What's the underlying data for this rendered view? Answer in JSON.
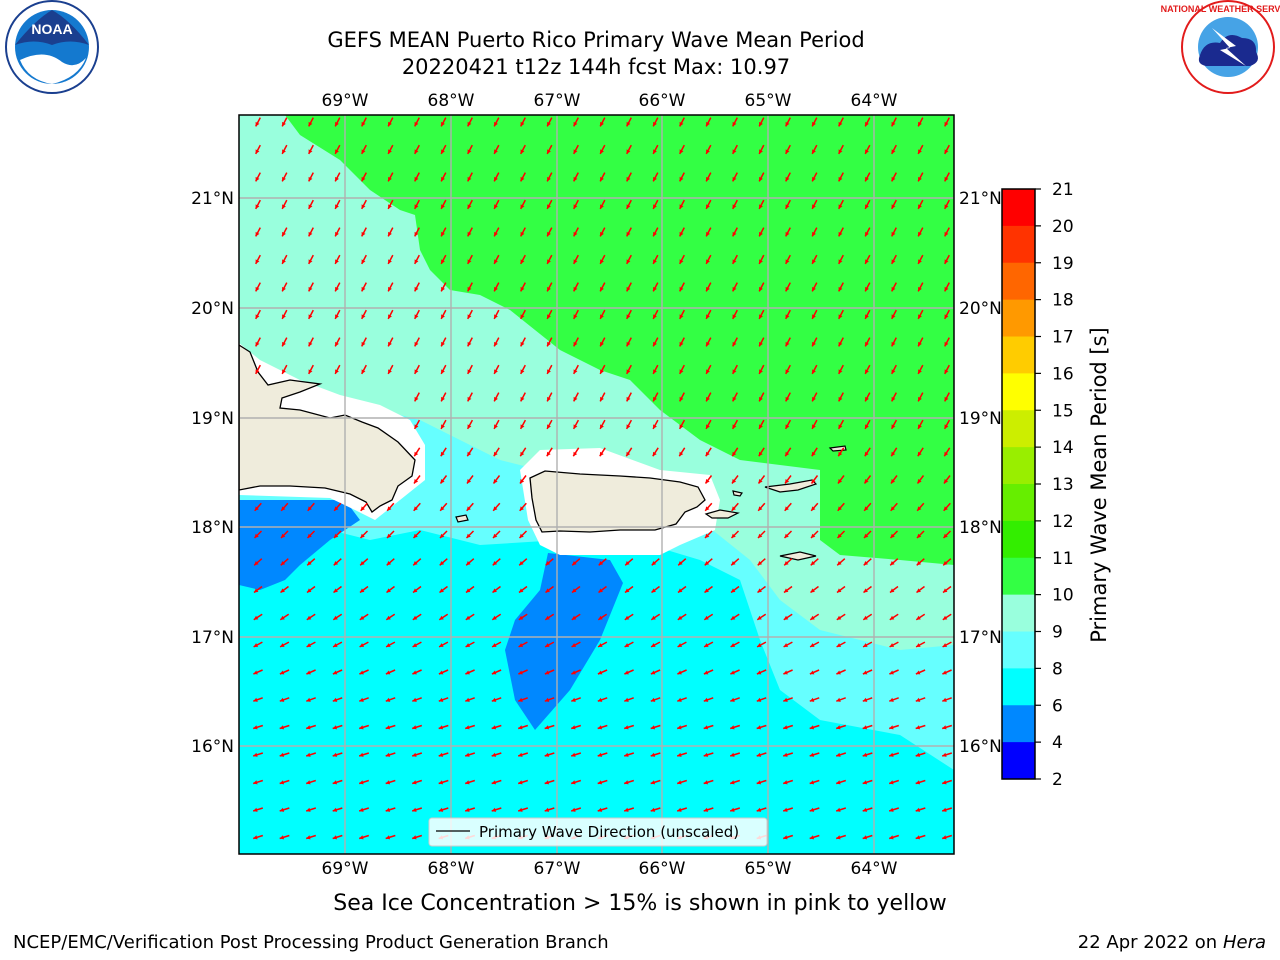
{
  "title": {
    "line1": "GEFS MEAN Puerto Rico Primary Wave Mean Period",
    "line2": "20220421 t12z 144h fcst   Max: 10.97"
  },
  "logos": {
    "left": {
      "icon": "noaa-logo",
      "text": "NOAA"
    },
    "right": {
      "icon": "nws-logo",
      "text": "NATIONAL WEATHER SERVICE"
    }
  },
  "map": {
    "lon_labels": [
      "69°W",
      "68°W",
      "67°W",
      "66°W",
      "65°W",
      "64°W"
    ],
    "lat_labels": [
      "21°N",
      "20°N",
      "19°N",
      "18°N",
      "17°N",
      "16°N"
    ],
    "legend_label": "Primary Wave Direction (unscaled)",
    "arrow_color": "#ff0000",
    "land_color": "#efecdc"
  },
  "colorbar": {
    "label": "Primary Wave Mean Period [s]",
    "ticks": [
      "21",
      "20",
      "19",
      "18",
      "17",
      "16",
      "15",
      "14",
      "13",
      "12",
      "11",
      "10",
      "9",
      "8",
      "6",
      "4",
      "2"
    ],
    "colors": [
      "#ff0000",
      "#ff3300",
      "#ff6600",
      "#ff9900",
      "#ffcc00",
      "#ffff00",
      "#ccee00",
      "#99ee00",
      "#66ee00",
      "#33ee00",
      "#33ff44",
      "#99ffdd",
      "#66ffff",
      "#00ffff",
      "#0088ff",
      "#0000ff"
    ]
  },
  "footer": {
    "sea_ice_note": "Sea Ice Concentration > 15% is shown in pink to yellow",
    "left": "NCEP/EMC/Verification Post Processing Product Generation Branch",
    "right_date": "22 Apr 2022 on ",
    "right_host": "Hera"
  }
}
